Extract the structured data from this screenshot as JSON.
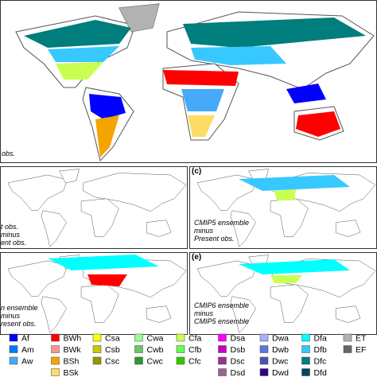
{
  "panels": [
    {
      "lines": [
        "obs."
      ]
    },
    {
      "lines": [
        "t obs.",
        "minus",
        "ent obs."
      ]
    },
    {
      "label": "(c)",
      "lines": [
        "CMIP5 ensemble",
        "minus",
        "Present obs."
      ]
    },
    {
      "lines": [
        "n ensemble",
        "minus",
        "resent obs."
      ]
    },
    {
      "label": "(e)",
      "lines": [
        "CMIP6 ensemble",
        "minus",
        "CMIP5 ensemble"
      ]
    }
  ],
  "legend": {
    "columns": [
      [
        {
          "label": "Af",
          "color": "#0000ff"
        },
        {
          "label": "Am",
          "color": "#0078ff"
        },
        {
          "label": "Aw",
          "color": "#46aafa"
        }
      ],
      [
        {
          "label": "BWh",
          "color": "#ff0000"
        },
        {
          "label": "BWk",
          "color": "#ff9696"
        },
        {
          "label": "BSh",
          "color": "#f5a500"
        },
        {
          "label": "BSk",
          "color": "#ffdc64"
        }
      ],
      [
        {
          "label": "Csa",
          "color": "#ffff00"
        },
        {
          "label": "Csb",
          "color": "#c8c800"
        },
        {
          "label": "Csc",
          "color": "#969600"
        }
      ],
      [
        {
          "label": "Cwa",
          "color": "#96ff96"
        },
        {
          "label": "Cwb",
          "color": "#64c864"
        },
        {
          "label": "Cwc",
          "color": "#329632"
        }
      ],
      [
        {
          "label": "Cfa",
          "color": "#c8ff50"
        },
        {
          "label": "Cfb",
          "color": "#64ff50"
        },
        {
          "label": "Cfc",
          "color": "#32c800"
        }
      ],
      [
        {
          "label": "Dsa",
          "color": "#ff00ff"
        },
        {
          "label": "Dsb",
          "color": "#c800c8"
        },
        {
          "label": "Dsc",
          "color": "#963296"
        },
        {
          "label": "Dsd",
          "color": "#966496"
        }
      ],
      [
        {
          "label": "Dwa",
          "color": "#aaafff"
        },
        {
          "label": "Dwb",
          "color": "#5a78dc"
        },
        {
          "label": "Dwc",
          "color": "#4b50b4"
        },
        {
          "label": "Dwd",
          "color": "#320087"
        }
      ],
      [
        {
          "label": "Dfa",
          "color": "#00ffff"
        },
        {
          "label": "Dfb",
          "color": "#37c8ff"
        },
        {
          "label": "Dfc",
          "color": "#007d7d"
        },
        {
          "label": "Dfd",
          "color": "#00465f"
        }
      ],
      [
        {
          "label": "ET",
          "color": "#b2b2b2"
        },
        {
          "label": "EF",
          "color": "#666666"
        }
      ]
    ]
  }
}
